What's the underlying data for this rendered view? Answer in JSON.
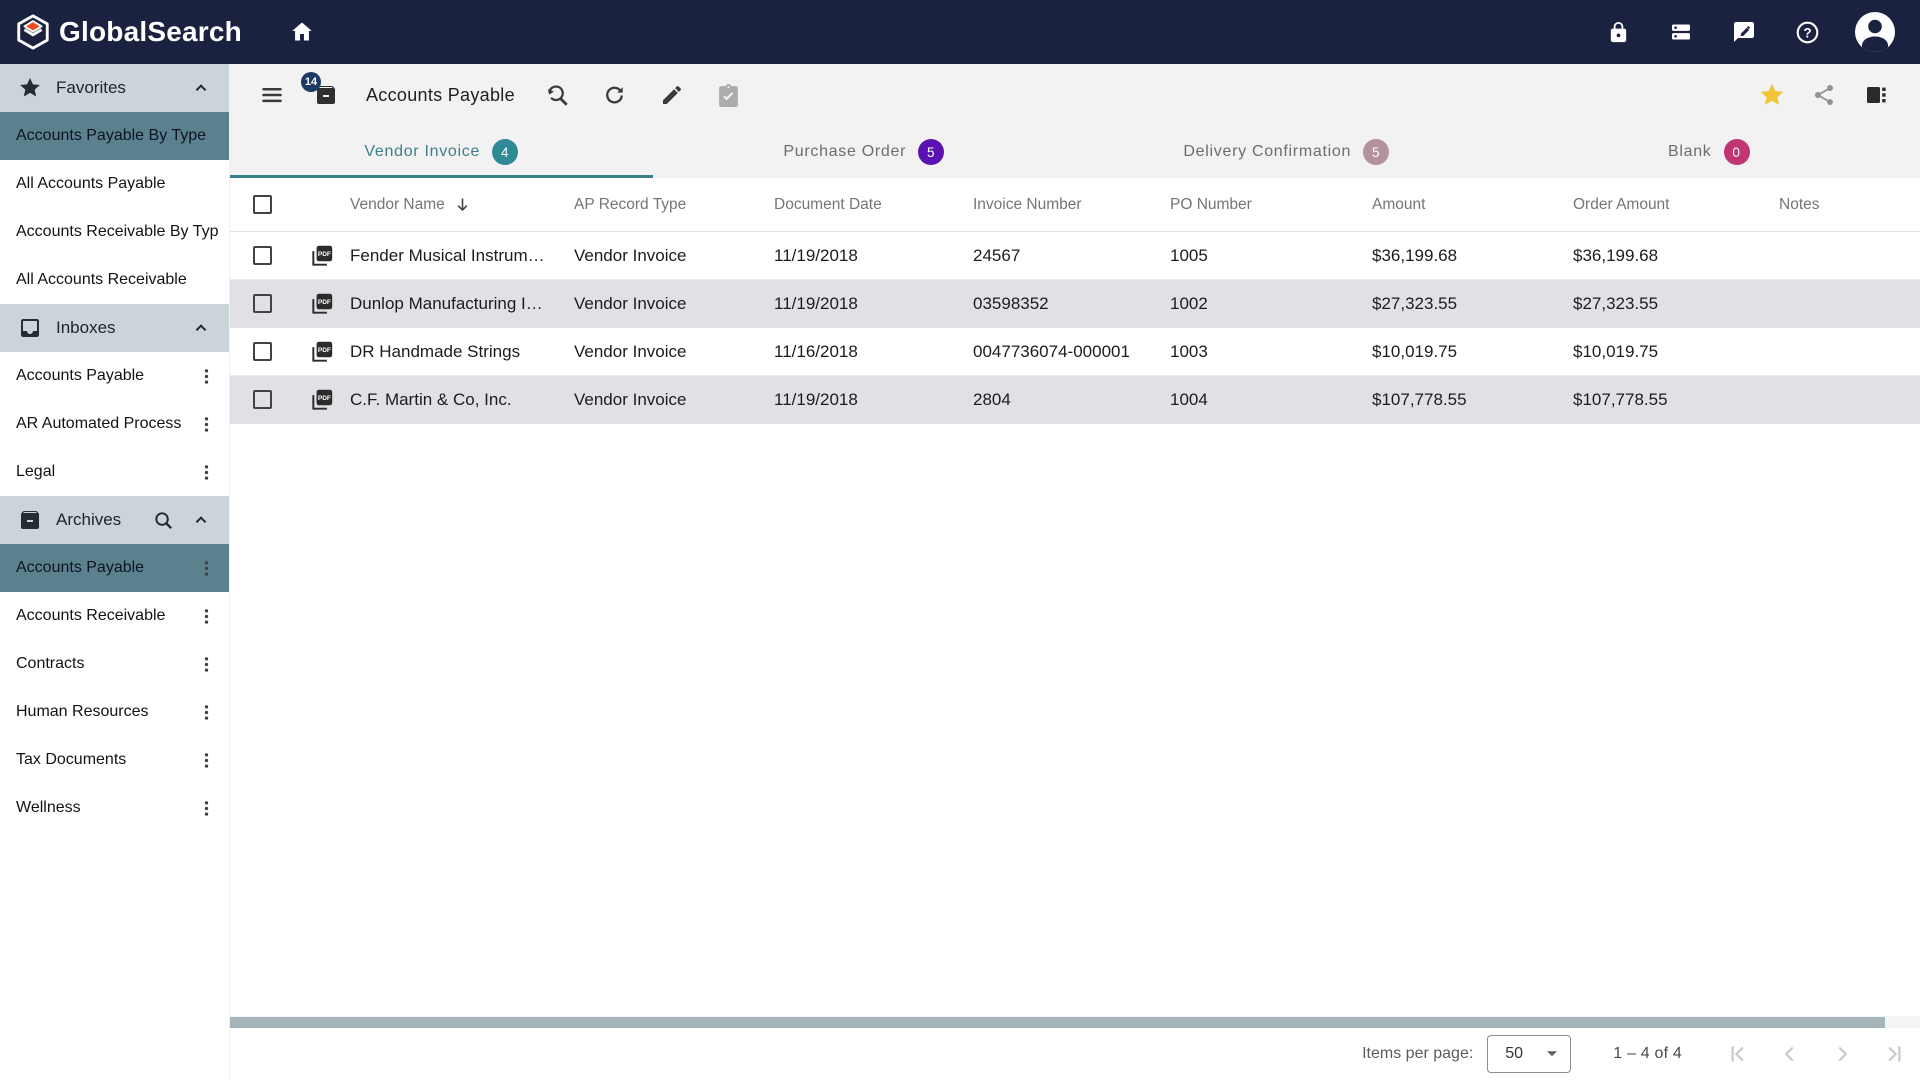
{
  "appbar": {
    "brand": "GlobalSearch"
  },
  "sidebar": {
    "sections": [
      {
        "label": "Favorites",
        "icon": "star-icon",
        "has_search": false,
        "items": [
          {
            "label": "Accounts Payable By Type",
            "selected": true,
            "kebab": false
          },
          {
            "label": "All Accounts Payable",
            "selected": false,
            "kebab": false
          },
          {
            "label": "Accounts Receivable By Type",
            "selected": false,
            "kebab": false
          },
          {
            "label": "All Accounts Receivable",
            "selected": false,
            "kebab": false
          }
        ]
      },
      {
        "label": "Inboxes",
        "icon": "inbox-icon",
        "has_search": false,
        "items": [
          {
            "label": "Accounts Payable",
            "selected": false,
            "kebab": true
          },
          {
            "label": "AR Automated Process …",
            "selected": false,
            "kebab": true
          },
          {
            "label": "Legal",
            "selected": false,
            "kebab": true
          }
        ]
      },
      {
        "label": "Archives",
        "icon": "archive-icon",
        "has_search": true,
        "items": [
          {
            "label": "Accounts Payable",
            "selected": true,
            "kebab": true
          },
          {
            "label": "Accounts Receivable",
            "selected": false,
            "kebab": true
          },
          {
            "label": "Contracts",
            "selected": false,
            "kebab": true
          },
          {
            "label": "Human Resources",
            "selected": false,
            "kebab": true
          },
          {
            "label": "Tax Documents",
            "selected": false,
            "kebab": true
          },
          {
            "label": "Wellness",
            "selected": false,
            "kebab": true
          }
        ]
      }
    ]
  },
  "toolbar": {
    "badge_count": "14",
    "title": "Accounts Payable"
  },
  "tabs": [
    {
      "label": "Vendor Invoice",
      "count": "4",
      "color": "#2e8a95",
      "active": true
    },
    {
      "label": "Purchase Order",
      "count": "5",
      "color": "#5c11b2",
      "active": false
    },
    {
      "label": "Delivery Confirmation",
      "count": "5",
      "color": "#b2929c",
      "active": false
    },
    {
      "label": "Blank",
      "count": "0",
      "color": "#c03673",
      "active": false
    }
  ],
  "table": {
    "columns": {
      "vendor": "Vendor Name",
      "type": "AP Record Type",
      "date": "Document Date",
      "invoice": "Invoice Number",
      "po": "PO Number",
      "amount": "Amount",
      "order_amount": "Order Amount",
      "notes": "Notes"
    },
    "sorted_by": "Vendor Name",
    "sort_direction": "descending",
    "rows": [
      {
        "vendor": "Fender Musical Instrum…",
        "type": "Vendor Invoice",
        "date": "11/19/2018",
        "invoice": "24567",
        "po": "1005",
        "amount": "$36,199.68",
        "order_amount": "$36,199.68",
        "notes": ""
      },
      {
        "vendor": "Dunlop Manufacturing I…",
        "type": "Vendor Invoice",
        "date": "11/19/2018",
        "invoice": "03598352",
        "po": "1002",
        "amount": "$27,323.55",
        "order_amount": "$27,323.55",
        "notes": ""
      },
      {
        "vendor": "DR Handmade Strings",
        "type": "Vendor Invoice",
        "date": "11/16/2018",
        "invoice": "0047736074-000001",
        "po": "1003",
        "amount": "$10,019.75",
        "order_amount": "$10,019.75",
        "notes": ""
      },
      {
        "vendor": "C.F. Martin & Co, Inc.",
        "type": "Vendor Invoice",
        "date": "11/19/2018",
        "invoice": "2804",
        "po": "1004",
        "amount": "$107,778.55",
        "order_amount": "$107,778.55",
        "notes": ""
      }
    ]
  },
  "pagination": {
    "items_per_page_label": "Items per page:",
    "page_size": "50",
    "range_label": "1 – 4 of 4"
  },
  "colors": {
    "appbar_bg": "#1a2240",
    "sidebar_header_bg": "#cbd5d9",
    "selected_item_bg": "#5b818f",
    "active_tab": "#3c7f8c",
    "row_alt_bg": "#e0e1e5",
    "favorite_star": "#f2c335",
    "scrollbar_thumb": "#a6b4bb",
    "toolbar_badge_bg": "#1c3a64"
  }
}
